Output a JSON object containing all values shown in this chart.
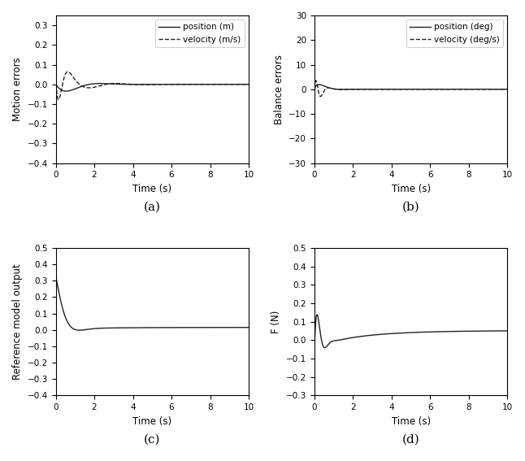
{
  "figsize": [
    6.46,
    5.67
  ],
  "dpi": 100,
  "bg_color": "#ffffff",
  "plot_bg_color": "#ffffff",
  "line_color": "#222222",
  "subplot_labels": [
    "(a)",
    "(b)",
    "(c)",
    "(d)"
  ],
  "panel_a": {
    "ylabel": "Motion errors",
    "xlabel": "Time (s)",
    "xlim": [
      0,
      10
    ],
    "ylim": [
      -0.4,
      0.35
    ],
    "yticks": [
      -0.4,
      -0.3,
      -0.2,
      -0.1,
      0.0,
      0.1,
      0.2,
      0.3
    ],
    "xticks": [
      0,
      2,
      4,
      6,
      8,
      10
    ],
    "legend": [
      "position (m)",
      "velocity (m/s)"
    ]
  },
  "panel_b": {
    "ylabel": "Balance errors",
    "xlabel": "Time (s)",
    "xlim": [
      0,
      10
    ],
    "ylim": [
      -30,
      30
    ],
    "yticks": [
      -30,
      -20,
      -10,
      0,
      10,
      20,
      30
    ],
    "xticks": [
      0,
      2,
      4,
      6,
      8,
      10
    ],
    "legend": [
      "position (deg)",
      "velocity (deg/s)"
    ]
  },
  "panel_c": {
    "ylabel": "Reference model output",
    "xlabel": "Time (s)",
    "xlim": [
      0,
      10
    ],
    "ylim": [
      -0.4,
      0.5
    ],
    "yticks": [
      -0.4,
      -0.3,
      -0.2,
      -0.1,
      0.0,
      0.1,
      0.2,
      0.3,
      0.4,
      0.5
    ],
    "xticks": [
      0,
      2,
      4,
      6,
      8,
      10
    ]
  },
  "panel_d": {
    "ylabel": "F (N)",
    "xlabel": "Time (s)",
    "xlim": [
      0,
      10
    ],
    "ylim": [
      -0.3,
      0.5
    ],
    "yticks": [
      -0.3,
      -0.2,
      -0.1,
      0.0,
      0.1,
      0.2,
      0.3,
      0.4,
      0.5
    ],
    "xticks": [
      0,
      2,
      4,
      6,
      8,
      10
    ]
  }
}
